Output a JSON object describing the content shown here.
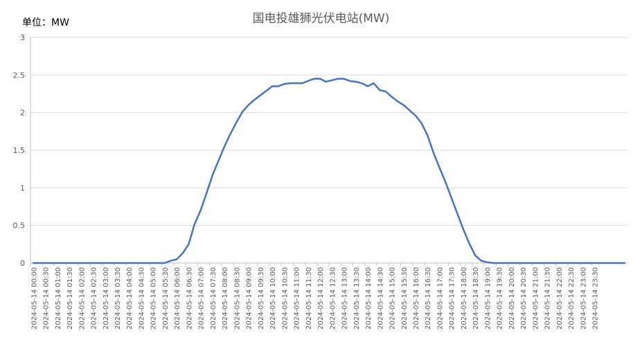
{
  "chart_data": {
    "type": "line",
    "title": "国电投雄狮光伏电站(MW)",
    "unit_label": "单位：MW",
    "xlabel": "",
    "ylabel": "",
    "ylim": [
      0,
      3
    ],
    "yticks": [
      "0",
      "0.5",
      "1",
      "1.5",
      "2",
      "2.5",
      "3"
    ],
    "grid": true,
    "legend": "none",
    "line_color": "#4472C4",
    "x_tick_labels": [
      "2024-05-14 00:00",
      "2024-05-14 00:30",
      "2024-05-14 01:00",
      "2024-05-14 01:30",
      "2024-05-14 02:00",
      "2024-05-14 02:30",
      "2024-05-14 03:00",
      "2024-05-14 03:30",
      "2024-05-14 04:00",
      "2024-05-14 04:30",
      "2024-05-14 05:00",
      "2024-05-14 05:30",
      "2024-05-14 06:00",
      "2024-05-14 06:30",
      "2024-05-14 07:00",
      "2024-05-14 07:30",
      "2024-05-14 08:00",
      "2024-05-14 08:30",
      "2024-05-14 09:00",
      "2024-05-14 09:30",
      "2024-05-14 10:00",
      "2024-05-14 10:30",
      "2024-05-14 11:00",
      "2024-05-14 11:30",
      "2024-05-14 12:00",
      "2024-05-14 12:30",
      "2024-05-14 13:00",
      "2024-05-14 13:30",
      "2024-05-14 14:00",
      "2024-05-14 14:30",
      "2024-05-14 15:00",
      "2024-05-14 15:30",
      "2024-05-14 16:00",
      "2024-05-14 16:30",
      "2024-05-14 17:00",
      "2024-05-14 17:30",
      "2024-05-14 18:00",
      "2024-05-14 18:30",
      "2024-05-14 19:00",
      "2024-05-14 19:30",
      "2024-05-14 20:00",
      "2024-05-14 20:30",
      "2024-05-14 21:00",
      "2024-05-14 21:30",
      "2024-05-14 22:00",
      "2024-05-14 22:30",
      "2024-05-14 23:00",
      "2024-05-14 23:30"
    ],
    "x_step_minutes": 15,
    "values": [
      0,
      0,
      0,
      0,
      0,
      0,
      0,
      0,
      0,
      0,
      0,
      0,
      0,
      0,
      0,
      0,
      0,
      0,
      0,
      0,
      0,
      0,
      0,
      0.03,
      0.05,
      0.13,
      0.25,
      0.52,
      0.7,
      0.93,
      1.17,
      1.36,
      1.55,
      1.72,
      1.87,
      2.01,
      2.1,
      2.17,
      2.23,
      2.29,
      2.35,
      2.35,
      2.38,
      2.39,
      2.39,
      2.39,
      2.42,
      2.45,
      2.45,
      2.41,
      2.43,
      2.45,
      2.45,
      2.42,
      2.41,
      2.39,
      2.35,
      2.39,
      2.3,
      2.28,
      2.21,
      2.15,
      2.1,
      2.03,
      1.96,
      1.86,
      1.7,
      1.47,
      1.27,
      1.08,
      0.87,
      0.66,
      0.45,
      0.26,
      0.1,
      0.03,
      0.01,
      0,
      0,
      0,
      0,
      0,
      0,
      0,
      0,
      0,
      0,
      0,
      0,
      0,
      0,
      0,
      0,
      0,
      0,
      0,
      0,
      0,
      0,
      0
    ]
  }
}
